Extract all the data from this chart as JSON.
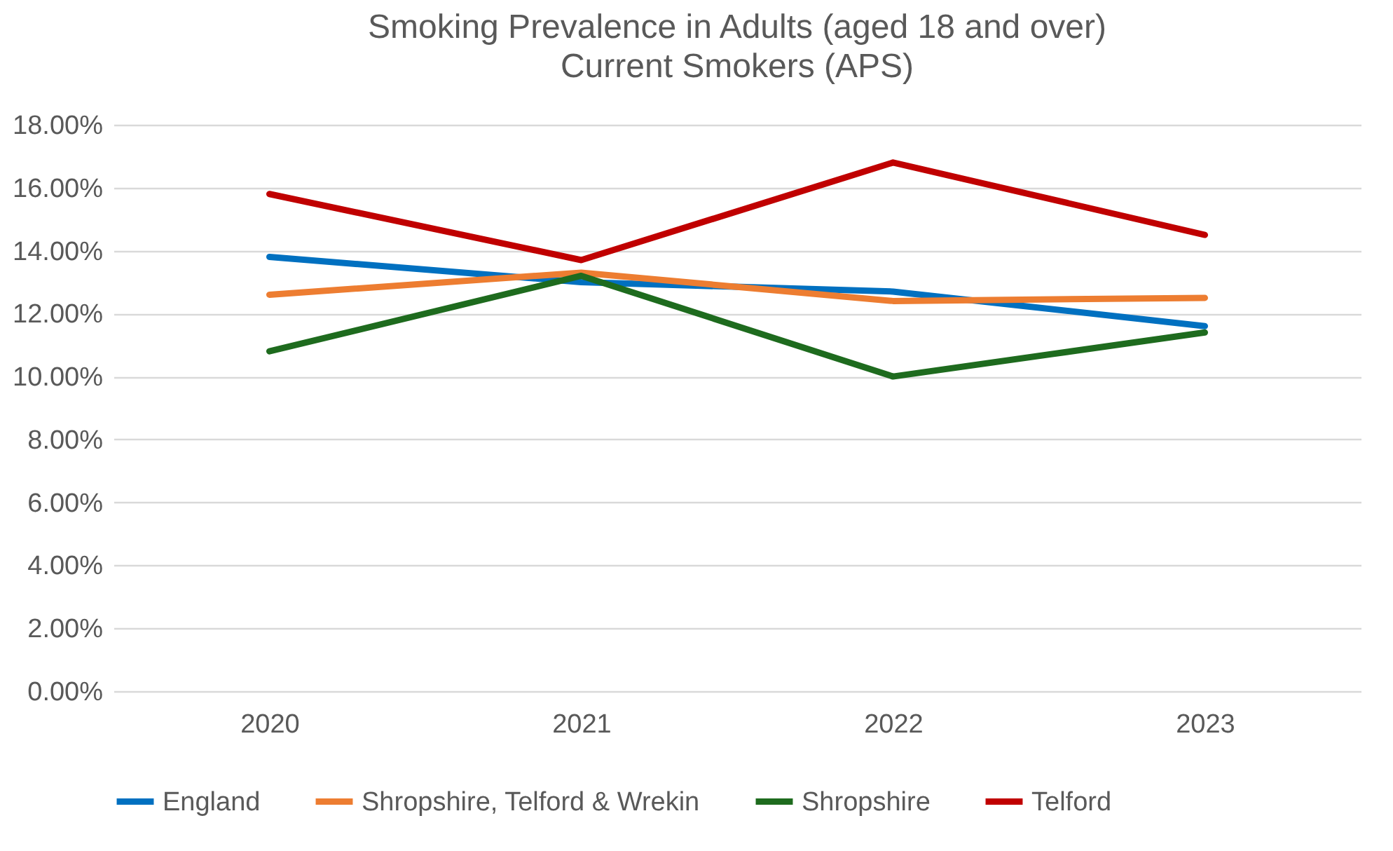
{
  "chart_data": {
    "type": "line",
    "title": "Smoking Prevalence in Adults (aged 18 and over)",
    "subtitle": "Current Smokers (APS)",
    "categories": [
      "2020",
      "2021",
      "2022",
      "2023"
    ],
    "series": [
      {
        "name": "England",
        "color": "#0070c0",
        "values": [
          13.8,
          13.0,
          12.7,
          11.6
        ]
      },
      {
        "name": "Shropshire, Telford & Wrekin",
        "color": "#ed7d31",
        "values": [
          12.6,
          13.3,
          12.4,
          12.5
        ]
      },
      {
        "name": "Shropshire",
        "color": "#1e6b1e",
        "values": [
          10.8,
          13.2,
          10.0,
          11.4
        ]
      },
      {
        "name": "Telford",
        "color": "#c00000",
        "values": [
          15.8,
          13.7,
          16.8,
          14.5
        ]
      }
    ],
    "ylim": [
      0,
      18
    ],
    "yticks": [
      {
        "value": 0,
        "label": "0.00%"
      },
      {
        "value": 2,
        "label": "2.00%"
      },
      {
        "value": 4,
        "label": "4.00%"
      },
      {
        "value": 6,
        "label": "6.00%"
      },
      {
        "value": 8,
        "label": "8.00%"
      },
      {
        "value": 10,
        "label": "10.00%"
      },
      {
        "value": 12,
        "label": "12.00%"
      },
      {
        "value": 14,
        "label": "14.00%"
      },
      {
        "value": 16,
        "label": "16.00%"
      },
      {
        "value": 18,
        "label": "18.00%"
      }
    ],
    "grid": "y",
    "legend": "bottom",
    "marker": "none",
    "line_style": "solid"
  }
}
